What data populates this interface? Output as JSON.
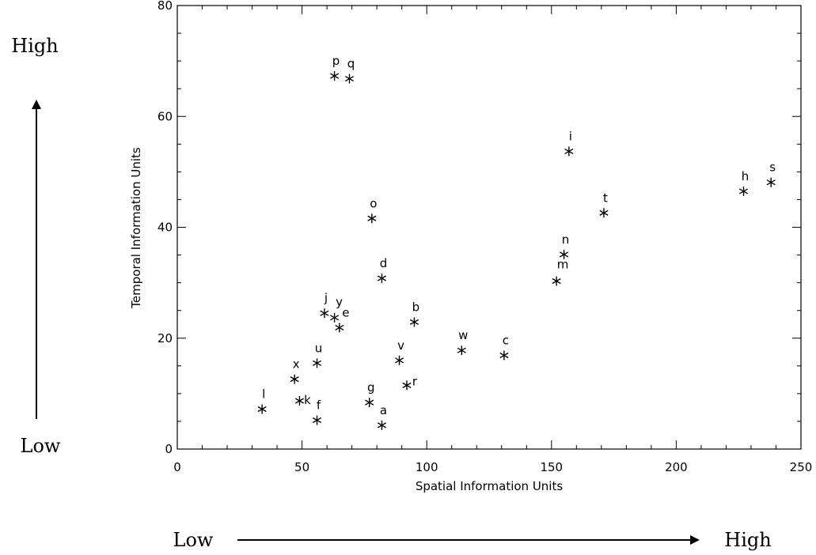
{
  "chart_data": {
    "type": "scatter",
    "title": "",
    "xlabel": "Spatial Information Units",
    "ylabel": "Temporal Information Units",
    "xlim": [
      0,
      250
    ],
    "ylim": [
      0,
      80
    ],
    "xticks": [
      0,
      50,
      100,
      150,
      200,
      250
    ],
    "yticks": [
      0,
      20,
      40,
      60,
      80
    ],
    "grid": false,
    "marker": "asterisk",
    "points": [
      {
        "label": "a",
        "x": 82,
        "y": 4.3
      },
      {
        "label": "b",
        "x": 95,
        "y": 22.9
      },
      {
        "label": "c",
        "x": 131,
        "y": 16.9
      },
      {
        "label": "d",
        "x": 82,
        "y": 30.8
      },
      {
        "label": "e",
        "x": 65,
        "y": 21.9
      },
      {
        "label": "f",
        "x": 56,
        "y": 5.2
      },
      {
        "label": "g",
        "x": 77,
        "y": 8.4
      },
      {
        "label": "h",
        "x": 227,
        "y": 46.5
      },
      {
        "label": "i",
        "x": 157,
        "y": 53.7
      },
      {
        "label": "j",
        "x": 59,
        "y": 24.5
      },
      {
        "label": "k",
        "x": 49,
        "y": 8.7
      },
      {
        "label": "l",
        "x": 34,
        "y": 7.2
      },
      {
        "label": "m",
        "x": 152,
        "y": 30.3
      },
      {
        "label": "n",
        "x": 155,
        "y": 35.1
      },
      {
        "label": "o",
        "x": 78,
        "y": 41.6
      },
      {
        "label": "p",
        "x": 63,
        "y": 67.3
      },
      {
        "label": "q",
        "x": 69,
        "y": 66.8
      },
      {
        "label": "r",
        "x": 92,
        "y": 11.5
      },
      {
        "label": "s",
        "x": 238,
        "y": 48.1
      },
      {
        "label": "t",
        "x": 171,
        "y": 42.6
      },
      {
        "label": "u",
        "x": 56,
        "y": 15.5
      },
      {
        "label": "v",
        "x": 89,
        "y": 16.0
      },
      {
        "label": "w",
        "x": 114,
        "y": 17.8
      },
      {
        "label": "x",
        "x": 47,
        "y": 12.6
      },
      {
        "label": "y",
        "x": 63,
        "y": 23.7
      }
    ]
  },
  "side_labels": {
    "y_high": "High",
    "y_low": "Low",
    "x_low": "Low",
    "x_high": "High"
  }
}
